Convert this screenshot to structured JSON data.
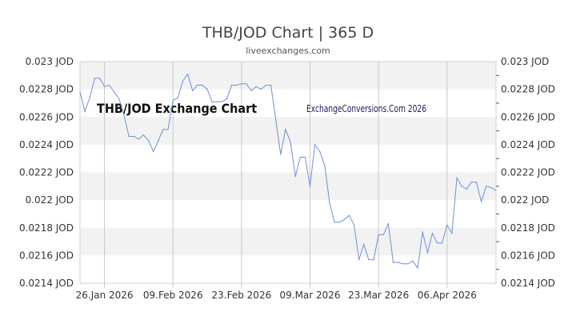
{
  "header": {
    "title": "THB/JOD Chart | 365 D",
    "subtitle": "liveexchanges.com"
  },
  "watermarks": {
    "chart_label": "THB/JOD Exchange Chart",
    "site_label": "ExchangeConversions.Com 2026"
  },
  "colors": {
    "line": "#6f8fd8",
    "band": "#f2f2f2",
    "grid": "#c8c8c8"
  },
  "chart_data": {
    "type": "line",
    "title": "THB/JOD Chart | 365 D",
    "subtitle": "liveexchanges.com",
    "xlabel": "",
    "ylabel": "",
    "ylim": [
      0.0214,
      0.023
    ],
    "xlim": [
      "2026-01-21",
      "2026-04-16"
    ],
    "grid": true,
    "y_ticks": [
      0.0214,
      0.0216,
      0.0218,
      0.022,
      0.0222,
      0.0224,
      0.0226,
      0.0228,
      0.023
    ],
    "y_tick_labels": [
      "0.0214 JOD",
      "0.0216 JOD",
      "0.0218 JOD",
      "0.022 JOD",
      "0.0222 JOD",
      "0.0224 JOD",
      "0.0226 JOD",
      "0.0228 JOD",
      "0.023 JOD"
    ],
    "x_ticks": [
      "2026-01-26",
      "2026-02-09",
      "2026-02-23",
      "2026-03-09",
      "2026-03-23",
      "2026-04-06"
    ],
    "x_tick_labels": [
      "26.Jan 2026",
      "09.Feb 2026",
      "23.Feb 2026",
      "09.Mar 2026",
      "23.Mar 2026",
      "06.Apr 2026"
    ],
    "x": [
      "2026-01-21",
      "2026-01-22",
      "2026-01-23",
      "2026-01-24",
      "2026-01-25",
      "2026-01-26",
      "2026-01-27",
      "2026-01-28",
      "2026-01-29",
      "2026-01-30",
      "2026-01-31",
      "2026-02-01",
      "2026-02-02",
      "2026-02-03",
      "2026-02-04",
      "2026-02-05",
      "2026-02-06",
      "2026-02-07",
      "2026-02-08",
      "2026-02-09",
      "2026-02-10",
      "2026-02-11",
      "2026-02-12",
      "2026-02-13",
      "2026-02-14",
      "2026-02-15",
      "2026-02-16",
      "2026-02-17",
      "2026-02-18",
      "2026-02-19",
      "2026-02-20",
      "2026-02-21",
      "2026-02-22",
      "2026-02-23",
      "2026-02-24",
      "2026-02-25",
      "2026-02-26",
      "2026-02-27",
      "2026-02-28",
      "2026-03-01",
      "2026-03-02",
      "2026-03-03",
      "2026-03-04",
      "2026-03-05",
      "2026-03-06",
      "2026-03-07",
      "2026-03-08",
      "2026-03-09",
      "2026-03-10",
      "2026-03-11",
      "2026-03-12",
      "2026-03-13",
      "2026-03-14",
      "2026-03-15",
      "2026-03-16",
      "2026-03-17",
      "2026-03-18",
      "2026-03-19",
      "2026-03-20",
      "2026-03-21",
      "2026-03-22",
      "2026-03-23",
      "2026-03-24",
      "2026-03-25",
      "2026-03-26",
      "2026-03-27",
      "2026-03-28",
      "2026-03-29",
      "2026-03-30",
      "2026-03-31",
      "2026-04-01",
      "2026-04-02",
      "2026-04-03",
      "2026-04-04",
      "2026-04-05",
      "2026-04-06",
      "2026-04-07",
      "2026-04-08",
      "2026-04-09",
      "2026-04-10",
      "2026-04-11",
      "2026-04-12",
      "2026-04-13",
      "2026-04-14",
      "2026-04-15",
      "2026-04-16"
    ],
    "series": [
      {
        "values": [
          0.02278,
          0.02264,
          0.02274,
          0.02288,
          0.02288,
          0.02282,
          0.02283,
          0.02278,
          0.02273,
          0.02261,
          0.02246,
          0.02246,
          0.02244,
          0.02247,
          0.02243,
          0.02235,
          0.02243,
          0.02251,
          0.02251,
          0.02272,
          0.02274,
          0.02286,
          0.02291,
          0.02279,
          0.02283,
          0.02283,
          0.0228,
          0.02271,
          0.02271,
          0.02271,
          0.02273,
          0.02283,
          0.02283,
          0.02284,
          0.02284,
          0.02279,
          0.02282,
          0.0228,
          0.02283,
          0.02283,
          0.02258,
          0.02233,
          0.02251,
          0.02242,
          0.02217,
          0.02231,
          0.02231,
          0.0221,
          0.0224,
          0.02235,
          0.02225,
          0.02198,
          0.02184,
          0.02184,
          0.02186,
          0.02189,
          0.02182,
          0.02157,
          0.02168,
          0.02157,
          0.02157,
          0.02175,
          0.02175,
          0.02183,
          0.02155,
          0.02155,
          0.02154,
          0.02154,
          0.02156,
          0.02151,
          0.02177,
          0.02162,
          0.02176,
          0.02169,
          0.02169,
          0.02182,
          0.02176,
          0.02216,
          0.0221,
          0.02208,
          0.02213,
          0.02213,
          0.02199,
          0.0221,
          0.02209,
          0.02207
        ]
      }
    ]
  }
}
